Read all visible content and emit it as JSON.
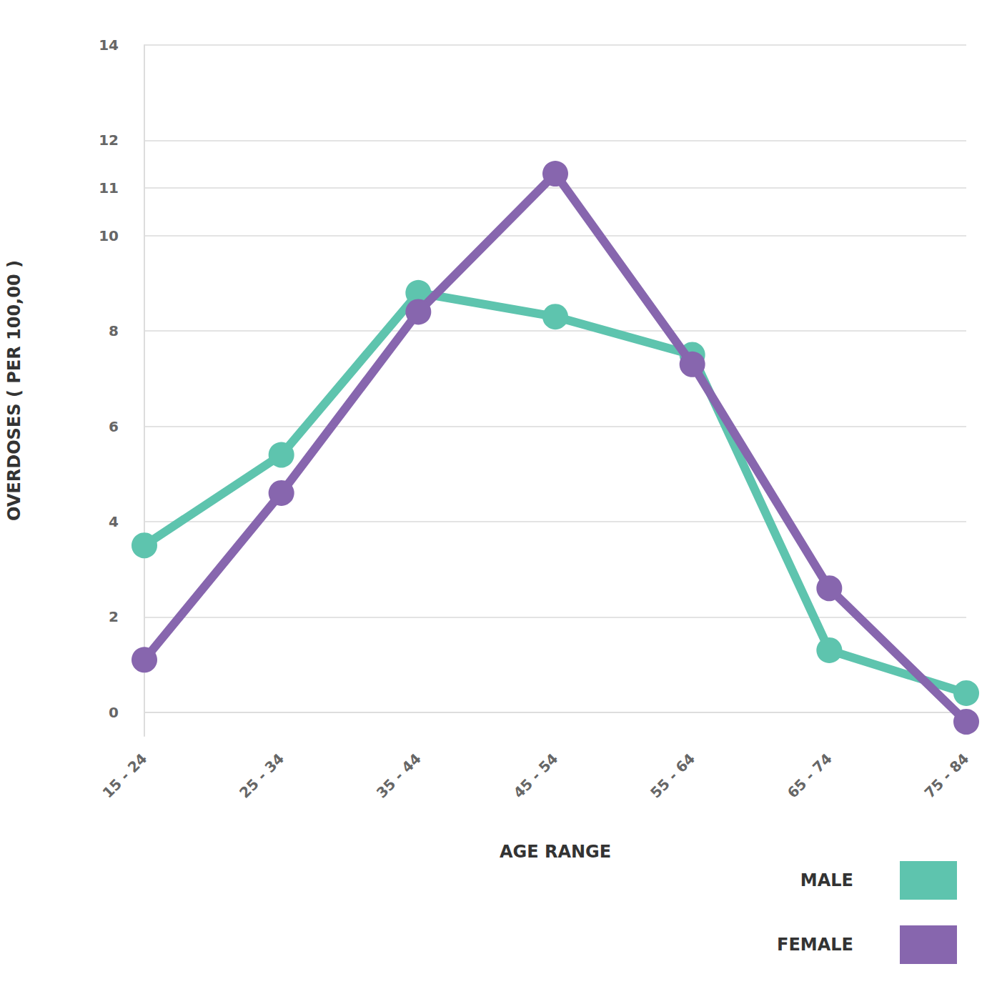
{
  "chart_data": {
    "type": "line",
    "x_label": "AGE RANGE",
    "y_label": "OVERDOSES ( PER 100,00 )",
    "categories": [
      "15 - 24",
      "25 - 34",
      "35 - 44",
      "45 - 54",
      "55 - 64",
      "65 - 74",
      "75 - 84"
    ],
    "series": [
      {
        "name": "MALE",
        "color": "#5ec4ae",
        "marker": "circle",
        "line_style": "solid",
        "values": [
          3.5,
          5.4,
          8.8,
          8.3,
          7.5,
          1.3,
          0.4
        ]
      },
      {
        "name": "FEMALE",
        "color": "#8766ae",
        "marker": "circle",
        "line_style": "solid",
        "values": [
          1.1,
          4.6,
          8.4,
          11.3,
          7.3,
          2.6,
          -0.2
        ]
      }
    ],
    "ylim": [
      -0.5,
      14
    ],
    "yticks": [
      0,
      2,
      4,
      6,
      8,
      10,
      11,
      12,
      14
    ],
    "grid": true,
    "legend": "bottom right"
  }
}
